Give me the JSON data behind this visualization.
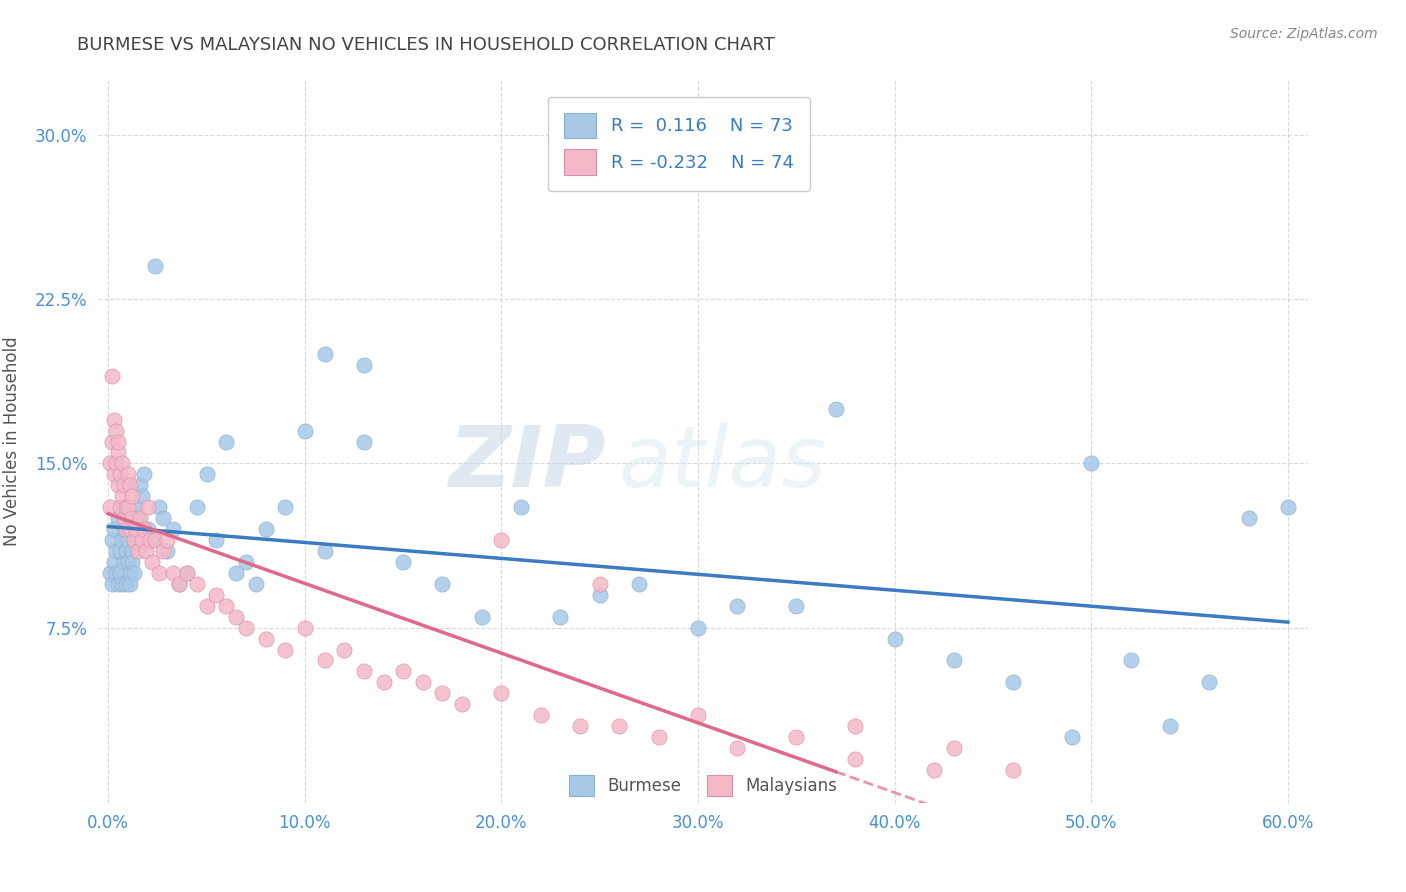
{
  "title": "BURMESE VS MALAYSIAN NO VEHICLES IN HOUSEHOLD CORRELATION CHART",
  "source_text": "Source: ZipAtlas.com",
  "xlabel": "",
  "ylabel": "No Vehicles in Household",
  "xlim": [
    -0.005,
    0.61
  ],
  "ylim": [
    -0.005,
    0.325
  ],
  "yticks": [
    0.075,
    0.15,
    0.225,
    0.3
  ],
  "ytick_labels": [
    "7.5%",
    "15.0%",
    "22.5%",
    "30.0%"
  ],
  "xticks": [
    0.0,
    0.1,
    0.2,
    0.3,
    0.4,
    0.5,
    0.6
  ],
  "xtick_labels": [
    "0.0%",
    "10.0%",
    "20.0%",
    "30.0%",
    "40.0%",
    "50.0%",
    "60.0%"
  ],
  "burmese_color": "#a8c8e8",
  "malaysian_color": "#f4b8c8",
  "burmese_line_color": "#3a7cbf",
  "malaysian_line_color": "#e06888",
  "R_burmese": 0.116,
  "N_burmese": 73,
  "R_malaysian": -0.232,
  "N_malaysian": 74,
  "title_color": "#444444",
  "axis_label_color": "#555555",
  "tick_color": "#4a90d9",
  "background_color": "#ffffff",
  "grid_color": "#d0d0d0",
  "watermark_zip": "ZIP",
  "watermark_atlas": "atlas",
  "legend_label_burmese": "Burmese",
  "legend_label_malaysian": "Malaysians",
  "burmese_x": [
    0.001,
    0.002,
    0.002,
    0.003,
    0.003,
    0.004,
    0.004,
    0.005,
    0.005,
    0.006,
    0.006,
    0.007,
    0.007,
    0.008,
    0.008,
    0.009,
    0.009,
    0.01,
    0.01,
    0.011,
    0.011,
    0.012,
    0.012,
    0.013,
    0.014,
    0.015,
    0.016,
    0.017,
    0.018,
    0.02,
    0.022,
    0.024,
    0.026,
    0.028,
    0.03,
    0.033,
    0.036,
    0.04,
    0.045,
    0.05,
    0.055,
    0.06,
    0.065,
    0.07,
    0.075,
    0.08,
    0.09,
    0.1,
    0.11,
    0.13,
    0.15,
    0.17,
    0.19,
    0.21,
    0.23,
    0.25,
    0.27,
    0.3,
    0.32,
    0.35,
    0.37,
    0.4,
    0.43,
    0.46,
    0.49,
    0.52,
    0.54,
    0.56,
    0.58,
    0.6,
    0.11,
    0.13,
    0.5
  ],
  "burmese_y": [
    0.1,
    0.095,
    0.115,
    0.105,
    0.12,
    0.11,
    0.1,
    0.095,
    0.125,
    0.11,
    0.1,
    0.115,
    0.095,
    0.12,
    0.105,
    0.11,
    0.095,
    0.105,
    0.115,
    0.1,
    0.095,
    0.11,
    0.105,
    0.1,
    0.13,
    0.125,
    0.14,
    0.135,
    0.145,
    0.12,
    0.115,
    0.24,
    0.13,
    0.125,
    0.11,
    0.12,
    0.095,
    0.1,
    0.13,
    0.145,
    0.115,
    0.16,
    0.1,
    0.105,
    0.095,
    0.12,
    0.13,
    0.165,
    0.11,
    0.16,
    0.105,
    0.095,
    0.08,
    0.13,
    0.08,
    0.09,
    0.095,
    0.075,
    0.085,
    0.085,
    0.175,
    0.07,
    0.06,
    0.05,
    0.025,
    0.06,
    0.03,
    0.05,
    0.125,
    0.13,
    0.2,
    0.195,
    0.15
  ],
  "malaysian_x": [
    0.001,
    0.001,
    0.002,
    0.002,
    0.003,
    0.003,
    0.004,
    0.004,
    0.005,
    0.005,
    0.005,
    0.006,
    0.006,
    0.007,
    0.007,
    0.008,
    0.008,
    0.009,
    0.009,
    0.01,
    0.01,
    0.011,
    0.011,
    0.012,
    0.012,
    0.013,
    0.014,
    0.015,
    0.016,
    0.017,
    0.018,
    0.019,
    0.02,
    0.021,
    0.022,
    0.024,
    0.026,
    0.028,
    0.03,
    0.033,
    0.036,
    0.04,
    0.045,
    0.05,
    0.055,
    0.06,
    0.065,
    0.07,
    0.08,
    0.09,
    0.1,
    0.11,
    0.12,
    0.13,
    0.14,
    0.15,
    0.16,
    0.17,
    0.18,
    0.2,
    0.22,
    0.24,
    0.26,
    0.28,
    0.3,
    0.32,
    0.35,
    0.38,
    0.42,
    0.46,
    0.2,
    0.25,
    0.38,
    0.43
  ],
  "malaysian_y": [
    0.13,
    0.15,
    0.19,
    0.16,
    0.17,
    0.145,
    0.165,
    0.15,
    0.155,
    0.14,
    0.16,
    0.145,
    0.13,
    0.135,
    0.15,
    0.125,
    0.14,
    0.13,
    0.12,
    0.145,
    0.13,
    0.12,
    0.14,
    0.125,
    0.135,
    0.115,
    0.12,
    0.11,
    0.125,
    0.115,
    0.12,
    0.11,
    0.13,
    0.115,
    0.105,
    0.115,
    0.1,
    0.11,
    0.115,
    0.1,
    0.095,
    0.1,
    0.095,
    0.085,
    0.09,
    0.085,
    0.08,
    0.075,
    0.07,
    0.065,
    0.075,
    0.06,
    0.065,
    0.055,
    0.05,
    0.055,
    0.05,
    0.045,
    0.04,
    0.045,
    0.035,
    0.03,
    0.03,
    0.025,
    0.035,
    0.02,
    0.025,
    0.015,
    0.01,
    0.01,
    0.115,
    0.095,
    0.03,
    0.02
  ]
}
